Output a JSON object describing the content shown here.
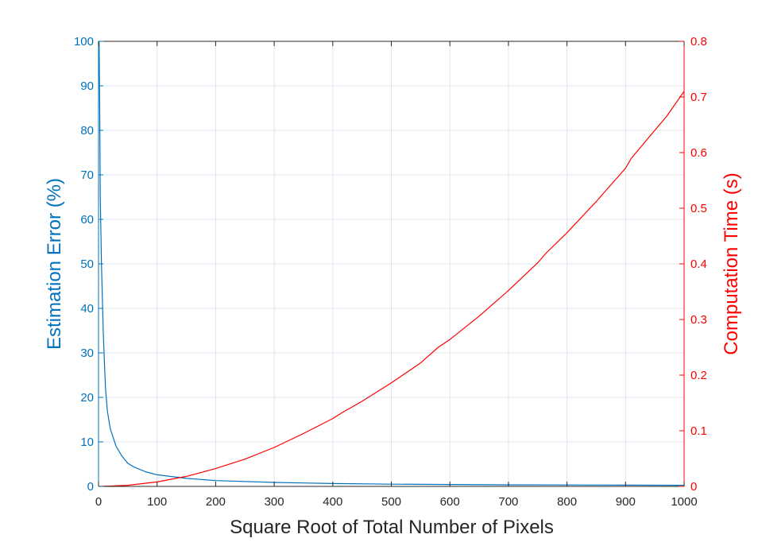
{
  "chart_data": {
    "type": "line",
    "xlabel": "Square Root of Total Number of Pixels",
    "ylabel_left": "Estimation Error (%)",
    "ylabel_right": "Computation Time (s)",
    "xlim": [
      0,
      1000
    ],
    "ylim_left": [
      0,
      100
    ],
    "ylim_right": [
      0,
      0.8
    ],
    "xticks": [
      0,
      100,
      200,
      300,
      400,
      500,
      600,
      700,
      800,
      900,
      1000
    ],
    "yticks_left": [
      0,
      10,
      20,
      30,
      40,
      50,
      60,
      70,
      80,
      90,
      100
    ],
    "yticks_right": [
      0,
      0.1,
      0.2,
      0.3,
      0.4,
      0.5,
      0.6,
      0.7,
      0.8
    ],
    "grid": true,
    "colors": {
      "left_axis": "#0072bd",
      "right_axis": "#ff0000",
      "grid": "#dfe6ee",
      "tick_x": "#262626"
    },
    "series": [
      {
        "axis": "left",
        "color": "#0072bd",
        "x": [
          1,
          2,
          3,
          5,
          8,
          10,
          12,
          15,
          20,
          25,
          30,
          40,
          50,
          60,
          80,
          100,
          150,
          200,
          300,
          400,
          500,
          600,
          700,
          800,
          900,
          1000
        ],
        "values": [
          100,
          85,
          65,
          50,
          35,
          28,
          22,
          17,
          13,
          11,
          9,
          6.8,
          5.2,
          4.4,
          3.3,
          2.6,
          1.8,
          1.3,
          0.9,
          0.65,
          0.5,
          0.42,
          0.36,
          0.32,
          0.28,
          0.25
        ]
      },
      {
        "axis": "right",
        "color": "#ff0000",
        "x": [
          0,
          20,
          50,
          100,
          150,
          200,
          250,
          300,
          350,
          400,
          415,
          450,
          500,
          550,
          580,
          600,
          650,
          700,
          750,
          765,
          800,
          850,
          900,
          910,
          950,
          970,
          1000
        ],
        "values": [
          0,
          0.0005,
          0.002,
          0.008,
          0.018,
          0.032,
          0.049,
          0.07,
          0.095,
          0.122,
          0.132,
          0.153,
          0.186,
          0.222,
          0.25,
          0.264,
          0.306,
          0.352,
          0.402,
          0.42,
          0.456,
          0.512,
          0.572,
          0.59,
          0.64,
          0.665,
          0.71
        ]
      }
    ]
  }
}
